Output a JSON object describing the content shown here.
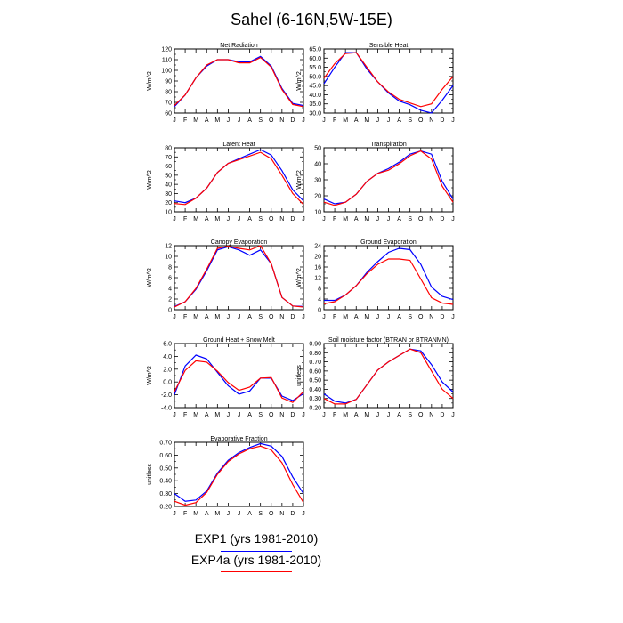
{
  "page": {
    "title": "Sahel (6-16N,5W-15E)"
  },
  "months": [
    "J",
    "F",
    "M",
    "A",
    "M",
    "J",
    "J",
    "A",
    "S",
    "O",
    "N",
    "D",
    "J"
  ],
  "legend": [
    {
      "label": "EXP1 (yrs 1981-2010)",
      "color": "#0000ff"
    },
    {
      "label": "EXP4a (yrs 1981-2010)",
      "color": "#ff0000"
    }
  ],
  "chart_data": [
    {
      "type": "line",
      "title": "Net Radiation",
      "ylabel": "W/m^2",
      "ylim": [
        60,
        120
      ],
      "yticks": [
        60,
        70,
        80,
        90,
        100,
        110,
        120
      ],
      "ytick_labels": [
        "60",
        "70",
        "80",
        "90",
        "100",
        "110",
        "120"
      ],
      "series": [
        {
          "name": "EXP1 (yrs 1981-2010)",
          "values": [
            66,
            77,
            93,
            104,
            110,
            110,
            108,
            108,
            113,
            104,
            83,
            69,
            67
          ]
        },
        {
          "name": "EXP4a (yrs 1981-2010)",
          "values": [
            67,
            77,
            93,
            105,
            110,
            110,
            107,
            107,
            112,
            103,
            82,
            68,
            66
          ]
        }
      ]
    },
    {
      "type": "line",
      "title": "Sensible Heat",
      "ylabel": "W/m^2",
      "ylim": [
        30,
        65
      ],
      "yticks": [
        30,
        35,
        40,
        45,
        50,
        55,
        60,
        65
      ],
      "ytick_labels": [
        "30.0",
        "35.0",
        "40.0",
        "45.0",
        "50.0",
        "55.0",
        "60.0",
        "65.0"
      ],
      "series": [
        {
          "name": "EXP1 (yrs 1981-2010)",
          "values": [
            46,
            55,
            63,
            63,
            54,
            47,
            41,
            36.5,
            34.5,
            31.5,
            30,
            37,
            45
          ]
        },
        {
          "name": "EXP4a (yrs 1981-2010)",
          "values": [
            49,
            57,
            62.5,
            63,
            55,
            47,
            41.5,
            37.5,
            35.5,
            33.5,
            35,
            43,
            50
          ]
        }
      ]
    },
    {
      "type": "line",
      "title": "Latent Heat",
      "ylabel": "W/m^2",
      "ylim": [
        10,
        80
      ],
      "yticks": [
        10,
        20,
        30,
        40,
        50,
        60,
        70,
        80
      ],
      "ytick_labels": [
        "10",
        "20",
        "30",
        "40",
        "50",
        "60",
        "70",
        "80"
      ],
      "series": [
        {
          "name": "EXP1 (yrs 1981-2010)",
          "values": [
            22,
            20,
            25,
            36,
            53,
            63,
            68,
            73,
            78,
            72,
            55,
            34,
            22
          ]
        },
        {
          "name": "EXP4a (yrs 1981-2010)",
          "values": [
            19,
            18,
            25,
            36,
            53,
            63,
            67,
            71,
            75,
            68,
            50,
            30,
            18
          ]
        }
      ]
    },
    {
      "type": "line",
      "title": "Transpiration",
      "ylabel": "W/m^2",
      "ylim": [
        10,
        50
      ],
      "yticks": [
        10,
        20,
        30,
        40,
        50
      ],
      "ytick_labels": [
        "10",
        "20",
        "30",
        "40",
        "50"
      ],
      "series": [
        {
          "name": "EXP1 (yrs 1981-2010)",
          "values": [
            18,
            15,
            16,
            21,
            29,
            34,
            37,
            41,
            46,
            48,
            46,
            29,
            18
          ]
        },
        {
          "name": "EXP4a (yrs 1981-2010)",
          "values": [
            16,
            14,
            16,
            21,
            29,
            34,
            36,
            40,
            45,
            48,
            43,
            26,
            16
          ]
        }
      ]
    },
    {
      "type": "line",
      "title": "Canopy Evaporation",
      "ylabel": "W/m^2",
      "ylim": [
        0,
        12
      ],
      "yticks": [
        0,
        2,
        4,
        6,
        8,
        10,
        12
      ],
      "ytick_labels": [
        "0",
        "2",
        "4",
        "6",
        "8",
        "10",
        "12"
      ],
      "series": [
        {
          "name": "EXP1 (yrs 1981-2010)",
          "values": [
            0.6,
            1.5,
            3.8,
            7.3,
            11.2,
            11.8,
            11.2,
            10.2,
            11.2,
            8.6,
            2.3,
            0.7,
            0.6
          ]
        },
        {
          "name": "EXP4a (yrs 1981-2010)",
          "values": [
            0.5,
            1.5,
            4.0,
            7.6,
            11.5,
            11.9,
            11.5,
            11.2,
            12.0,
            8.6,
            2.3,
            0.7,
            0.5
          ]
        }
      ]
    },
    {
      "type": "line",
      "title": "Ground Evaporation",
      "ylabel": "W/m^2",
      "ylim": [
        0,
        24
      ],
      "yticks": [
        0,
        4,
        8,
        12,
        16,
        20,
        24
      ],
      "ytick_labels": [
        "0",
        "4",
        "8",
        "12",
        "16",
        "20",
        "24"
      ],
      "series": [
        {
          "name": "EXP1 (yrs 1981-2010)",
          "values": [
            3.5,
            3.5,
            5.5,
            9,
            14,
            18,
            21.5,
            23,
            22.5,
            17,
            8.5,
            5,
            3.8
          ]
        },
        {
          "name": "EXP4a (yrs 1981-2010)",
          "values": [
            2.2,
            3.0,
            5.5,
            9,
            13.5,
            17,
            19,
            19,
            18.5,
            11.5,
            4.5,
            2.5,
            2.0
          ]
        }
      ]
    },
    {
      "type": "line",
      "title": "Ground Heat + Snow Melt",
      "ylabel": "W/m^2",
      "ylim": [
        -4,
        6
      ],
      "yticks": [
        -4,
        -2,
        0,
        2,
        4,
        6
      ],
      "ytick_labels": [
        "-4.0",
        "-2.0",
        "0.0",
        "2.0",
        "4.0",
        "6.0"
      ],
      "series": [
        {
          "name": "EXP1 (yrs 1981-2010)",
          "values": [
            -2.0,
            2.5,
            4.2,
            3.6,
            1.5,
            -0.6,
            -1.9,
            -1.4,
            0.6,
            0.6,
            -2.2,
            -2.9,
            -1.8
          ]
        },
        {
          "name": "EXP4a (yrs 1981-2010)",
          "values": [
            -1.5,
            1.8,
            3.3,
            3.1,
            1.7,
            -0.1,
            -1.3,
            -0.8,
            0.6,
            0.7,
            -2.5,
            -3.2,
            -1.5
          ]
        }
      ]
    },
    {
      "type": "line",
      "title": "Soil moisture factor (BTRAN or BTRANMN)",
      "ylabel": "unitless",
      "ylim": [
        0.2,
        0.9
      ],
      "yticks": [
        0.2,
        0.3,
        0.4,
        0.5,
        0.6,
        0.7,
        0.8,
        0.9
      ],
      "ytick_labels": [
        "0.20",
        "0.30",
        "0.40",
        "0.50",
        "0.60",
        "0.70",
        "0.80",
        "0.90"
      ],
      "series": [
        {
          "name": "EXP1 (yrs 1981-2010)",
          "values": [
            0.35,
            0.27,
            0.25,
            0.29,
            0.45,
            0.61,
            0.7,
            0.77,
            0.84,
            0.82,
            0.67,
            0.48,
            0.37
          ]
        },
        {
          "name": "EXP4a (yrs 1981-2010)",
          "values": [
            0.3,
            0.24,
            0.24,
            0.29,
            0.45,
            0.61,
            0.7,
            0.77,
            0.84,
            0.8,
            0.6,
            0.4,
            0.3
          ]
        }
      ]
    },
    {
      "type": "line",
      "title": "Evaporative Fraction",
      "ylabel": "unitless",
      "ylim": [
        0.2,
        0.7
      ],
      "yticks": [
        0.2,
        0.3,
        0.4,
        0.5,
        0.6,
        0.7
      ],
      "ytick_labels": [
        "0.20",
        "0.30",
        "0.40",
        "0.50",
        "0.60",
        "0.70"
      ],
      "series": [
        {
          "name": "EXP1 (yrs 1981-2010)",
          "values": [
            0.3,
            0.24,
            0.25,
            0.32,
            0.46,
            0.56,
            0.62,
            0.66,
            0.69,
            0.67,
            0.59,
            0.43,
            0.3
          ]
        },
        {
          "name": "EXP4a (yrs 1981-2010)",
          "values": [
            0.24,
            0.21,
            0.23,
            0.31,
            0.45,
            0.55,
            0.61,
            0.65,
            0.67,
            0.64,
            0.54,
            0.37,
            0.23
          ]
        }
      ]
    }
  ]
}
